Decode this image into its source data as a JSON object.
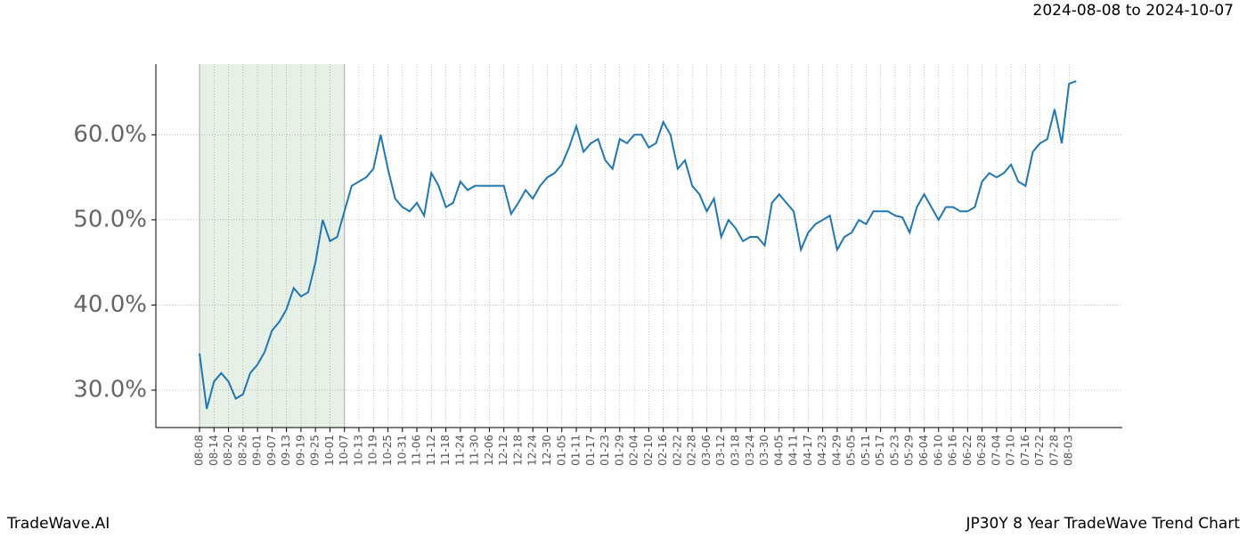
{
  "chart_data": {
    "type": "line",
    "title": "JP30Y 8 Year TradeWave Trend Chart",
    "brand": "TradeWave.AI",
    "date_range": "2024-08-08 to 2024-10-07",
    "shade": [
      "08-08",
      "10-07"
    ],
    "color": "#1f77b4",
    "grid": true,
    "categories": [
      "08-08",
      null,
      "08-14",
      null,
      "08-20",
      null,
      "08-26",
      null,
      "09-01",
      null,
      "09-07",
      null,
      "09-13",
      null,
      "09-19",
      null,
      "09-25",
      null,
      "10-01",
      null,
      "10-07",
      null,
      "10-13",
      null,
      "10-19",
      null,
      "10-25",
      null,
      "10-31",
      null,
      "11-06",
      null,
      "11-12",
      null,
      "11-18",
      null,
      "11-24",
      null,
      "11-30",
      null,
      "12-06",
      null,
      "12-12",
      null,
      "12-18",
      null,
      "12-24",
      null,
      "12-30",
      null,
      "01-05",
      null,
      "01-11",
      null,
      "01-17",
      null,
      "01-23",
      null,
      "01-29",
      null,
      "02-04",
      null,
      "02-10",
      null,
      "02-16",
      null,
      "02-22",
      null,
      "02-28",
      null,
      "03-06",
      null,
      "03-12",
      null,
      "03-18",
      null,
      "03-24",
      null,
      "03-30",
      null,
      "04-05",
      null,
      "04-11",
      null,
      "04-17",
      null,
      "04-23",
      null,
      "04-29",
      null,
      "05-05",
      null,
      "05-11",
      null,
      "05-17",
      null,
      "05-23",
      null,
      "05-29",
      null,
      "06-04",
      null,
      "06-10",
      null,
      "06-16",
      null,
      "06-22",
      null,
      "06-28",
      null,
      "07-04",
      null,
      "07-10",
      null,
      "07-16",
      null,
      "07-22",
      null,
      "07-28",
      null,
      "08-03",
      null
    ],
    "values": [
      34.3,
      27.8,
      31,
      32,
      31,
      29,
      29.5,
      32,
      33,
      34.5,
      37,
      38,
      39.5,
      42,
      41,
      41.5,
      45,
      50,
      47.5,
      48,
      51,
      54,
      54.5,
      55,
      56,
      60,
      56,
      52.5,
      51.5,
      51,
      52,
      50.5,
      55.5,
      54,
      51.5,
      52,
      54.5,
      53.5,
      54,
      54,
      54,
      54,
      54,
      50.7,
      52,
      53.5,
      52.5,
      54,
      55,
      55.5,
      56.5,
      58.5,
      61,
      58,
      59,
      59.5,
      57,
      56,
      59.5,
      59,
      60,
      60,
      58.5,
      59,
      61.5,
      60,
      56,
      57,
      54,
      53,
      51,
      52.5,
      48,
      50,
      49,
      47.5,
      48,
      48,
      47,
      52,
      53,
      52,
      51,
      46.5,
      48.5,
      49.5,
      50,
      50.5,
      46.5,
      48,
      48.5,
      50,
      49.5,
      51,
      51,
      51,
      50.5,
      50.3,
      48.5,
      51.5,
      53,
      51.5,
      50,
      51.5,
      51.5,
      51,
      51,
      51.5,
      54.5,
      55.5,
      55,
      55.5,
      56.5,
      54.5,
      54,
      58,
      59,
      59.5,
      63,
      59,
      66,
      66.3
    ],
    "ylim": [
      25.6,
      68.3
    ],
    "yticks": [
      {
        "value": 30,
        "label": "30.0%"
      },
      {
        "value": 40,
        "label": "40.0%"
      },
      {
        "value": 50,
        "label": "50.0%"
      },
      {
        "value": 60,
        "label": "60.0%"
      }
    ]
  }
}
